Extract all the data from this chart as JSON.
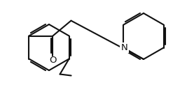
{
  "bg_color": "#ffffff",
  "line_color": "#111111",
  "lw": 1.5,
  "dbo": 2.5,
  "fs": 9.5,
  "fig_width": 2.67,
  "fig_height": 1.45,
  "dpi": 100
}
